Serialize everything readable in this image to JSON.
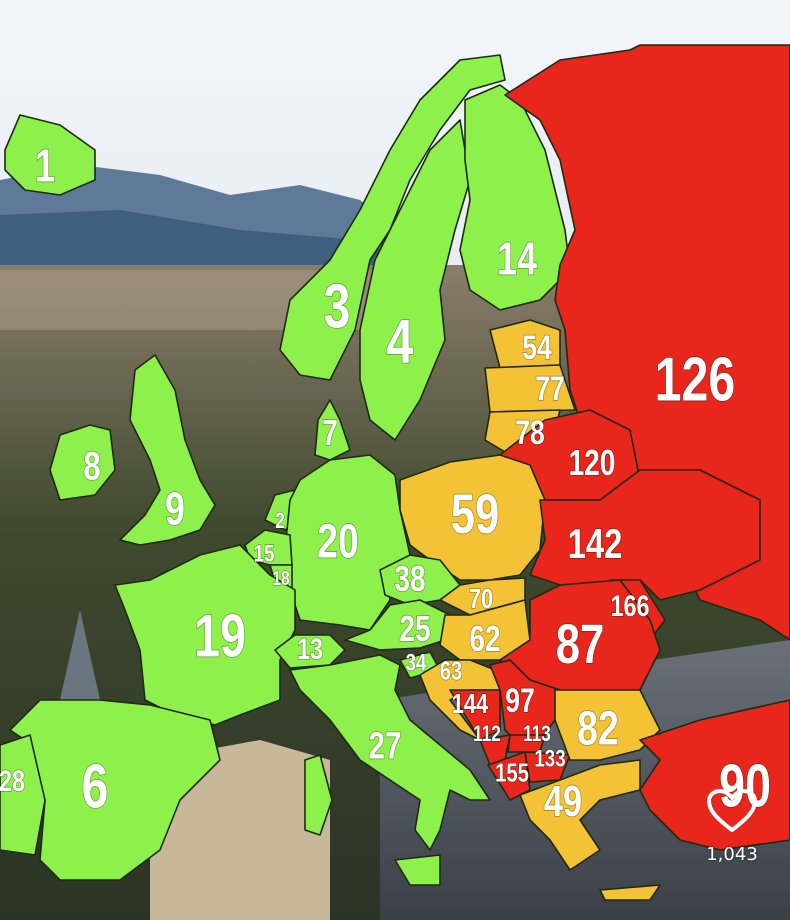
{
  "colors": {
    "low": "#8ef04a",
    "mid": "#f4c235",
    "high": "#e8261c",
    "border": "#1e2a12"
  },
  "regions": [
    {
      "value": "1",
      "tier": "low"
    },
    {
      "value": "3",
      "tier": "low"
    },
    {
      "value": "4",
      "tier": "low"
    },
    {
      "value": "14",
      "tier": "low"
    },
    {
      "value": "126",
      "tier": "high"
    },
    {
      "value": "54",
      "tier": "mid"
    },
    {
      "value": "77",
      "tier": "mid"
    },
    {
      "value": "78",
      "tier": "mid"
    },
    {
      "value": "8",
      "tier": "low"
    },
    {
      "value": "9",
      "tier": "low"
    },
    {
      "value": "7",
      "tier": "low"
    },
    {
      "value": "120",
      "tier": "high"
    },
    {
      "value": "59",
      "tier": "mid"
    },
    {
      "value": "2",
      "tier": "low"
    },
    {
      "value": "20",
      "tier": "low"
    },
    {
      "value": "142",
      "tier": "high"
    },
    {
      "value": "15",
      "tier": "low"
    },
    {
      "value": "18",
      "tier": "low"
    },
    {
      "value": "38",
      "tier": "low"
    },
    {
      "value": "70",
      "tier": "mid"
    },
    {
      "value": "166",
      "tier": "high"
    },
    {
      "value": "19",
      "tier": "low"
    },
    {
      "value": "13",
      "tier": "low"
    },
    {
      "value": "25",
      "tier": "low"
    },
    {
      "value": "62",
      "tier": "mid"
    },
    {
      "value": "87",
      "tier": "high"
    },
    {
      "value": "34",
      "tier": "low"
    },
    {
      "value": "63",
      "tier": "mid"
    },
    {
      "value": "144",
      "tier": "high"
    },
    {
      "value": "97",
      "tier": "high"
    },
    {
      "value": "112",
      "tier": "high"
    },
    {
      "value": "113",
      "tier": "high"
    },
    {
      "value": "133",
      "tier": "high"
    },
    {
      "value": "155",
      "tier": "high"
    },
    {
      "value": "82",
      "tier": "mid"
    },
    {
      "value": "27",
      "tier": "low"
    },
    {
      "value": "6",
      "tier": "low"
    },
    {
      "value": "28",
      "tier": "low"
    },
    {
      "value": "49",
      "tier": "mid"
    },
    {
      "value": "90",
      "tier": "high"
    }
  ],
  "like": {
    "icon": "heart-icon",
    "count": "1,043"
  }
}
